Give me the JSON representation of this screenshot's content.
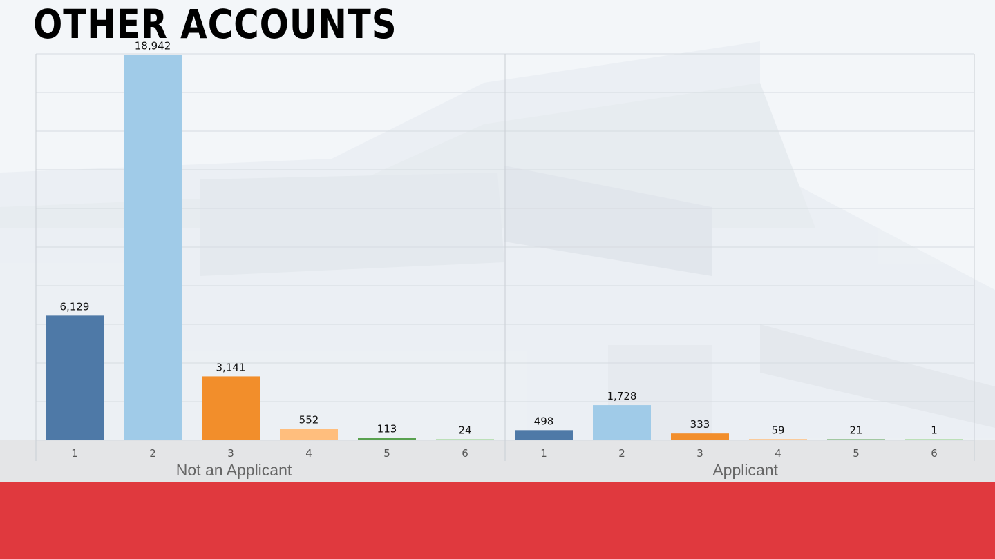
{
  "slide": {
    "title": "OTHER ACCOUNTS",
    "colors": {
      "footer": "#e0393e",
      "axis_band": "#e4e5e7",
      "background": "#f3f6f9"
    }
  },
  "chart_data": {
    "type": "bar",
    "title": "",
    "xlabel": "",
    "ylabel": "",
    "ylim": [
      0,
      19000
    ],
    "grid": true,
    "legend": "none",
    "categories": [
      "1",
      "2",
      "3",
      "4",
      "5",
      "6"
    ],
    "category_colors": [
      "#4e79a7",
      "#a0cbe8",
      "#f28e2b",
      "#ffbe7d",
      "#59a14f",
      "#8cd17d"
    ],
    "groups": [
      {
        "label": "Not an Applicant",
        "values": [
          6129,
          18942,
          3141,
          552,
          113,
          24
        ],
        "value_labels": [
          "6,129",
          "18,942",
          "3,141",
          "552",
          "113",
          "24"
        ]
      },
      {
        "label": "Applicant",
        "values": [
          498,
          1728,
          333,
          59,
          21,
          1
        ],
        "value_labels": [
          "498",
          "1,728",
          "333",
          "59",
          "21",
          "1"
        ]
      }
    ]
  }
}
